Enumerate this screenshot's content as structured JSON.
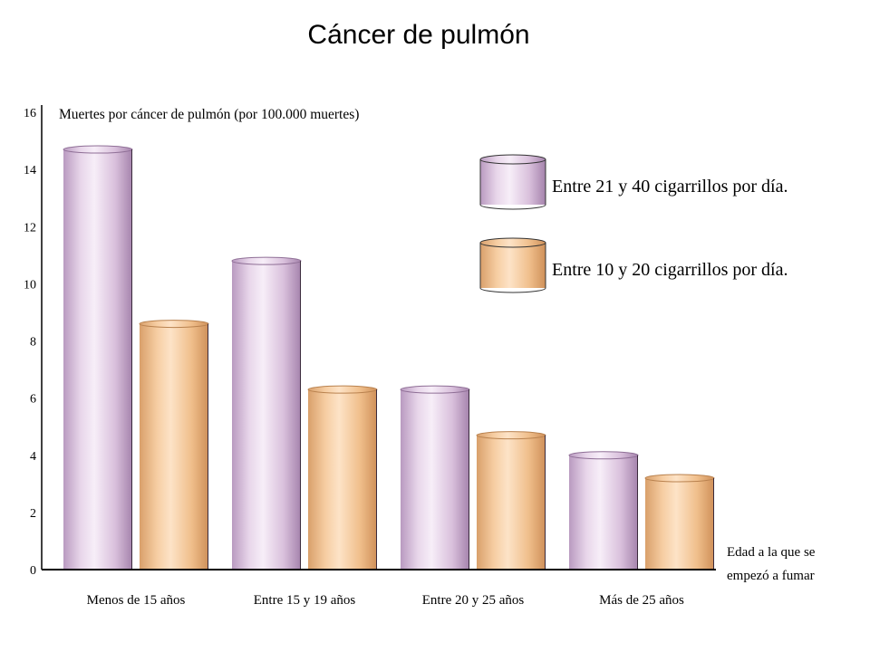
{
  "chart_data": {
    "type": "bar",
    "title": "Cáncer de pulmón",
    "ylabel": "Muertes por cáncer de pulmón (por 100.000 muertes)",
    "xlabel_lines": [
      "Edad a la que se",
      "empezó a fumar"
    ],
    "ylim": [
      0,
      16
    ],
    "yticks": [
      "0",
      "2",
      "4",
      "6",
      "8",
      "10",
      "12",
      "14",
      "16"
    ],
    "categories": [
      "Menos de 15 años",
      "Entre 15 y 19 años",
      "Entre 20 y 25 años",
      "Más de 25 años"
    ],
    "series": [
      {
        "name": "Entre 21 y 40 cigarrillos por día.",
        "color": "#dcc3de",
        "values": [
          14.7,
          10.8,
          6.3,
          4.0
        ]
      },
      {
        "name": "Entre 10 y 20 cigarrillos por día.",
        "color": "#f2c394",
        "values": [
          8.6,
          6.3,
          4.7,
          3.2
        ]
      }
    ],
    "legend_position": "top-right",
    "grid": false
  }
}
